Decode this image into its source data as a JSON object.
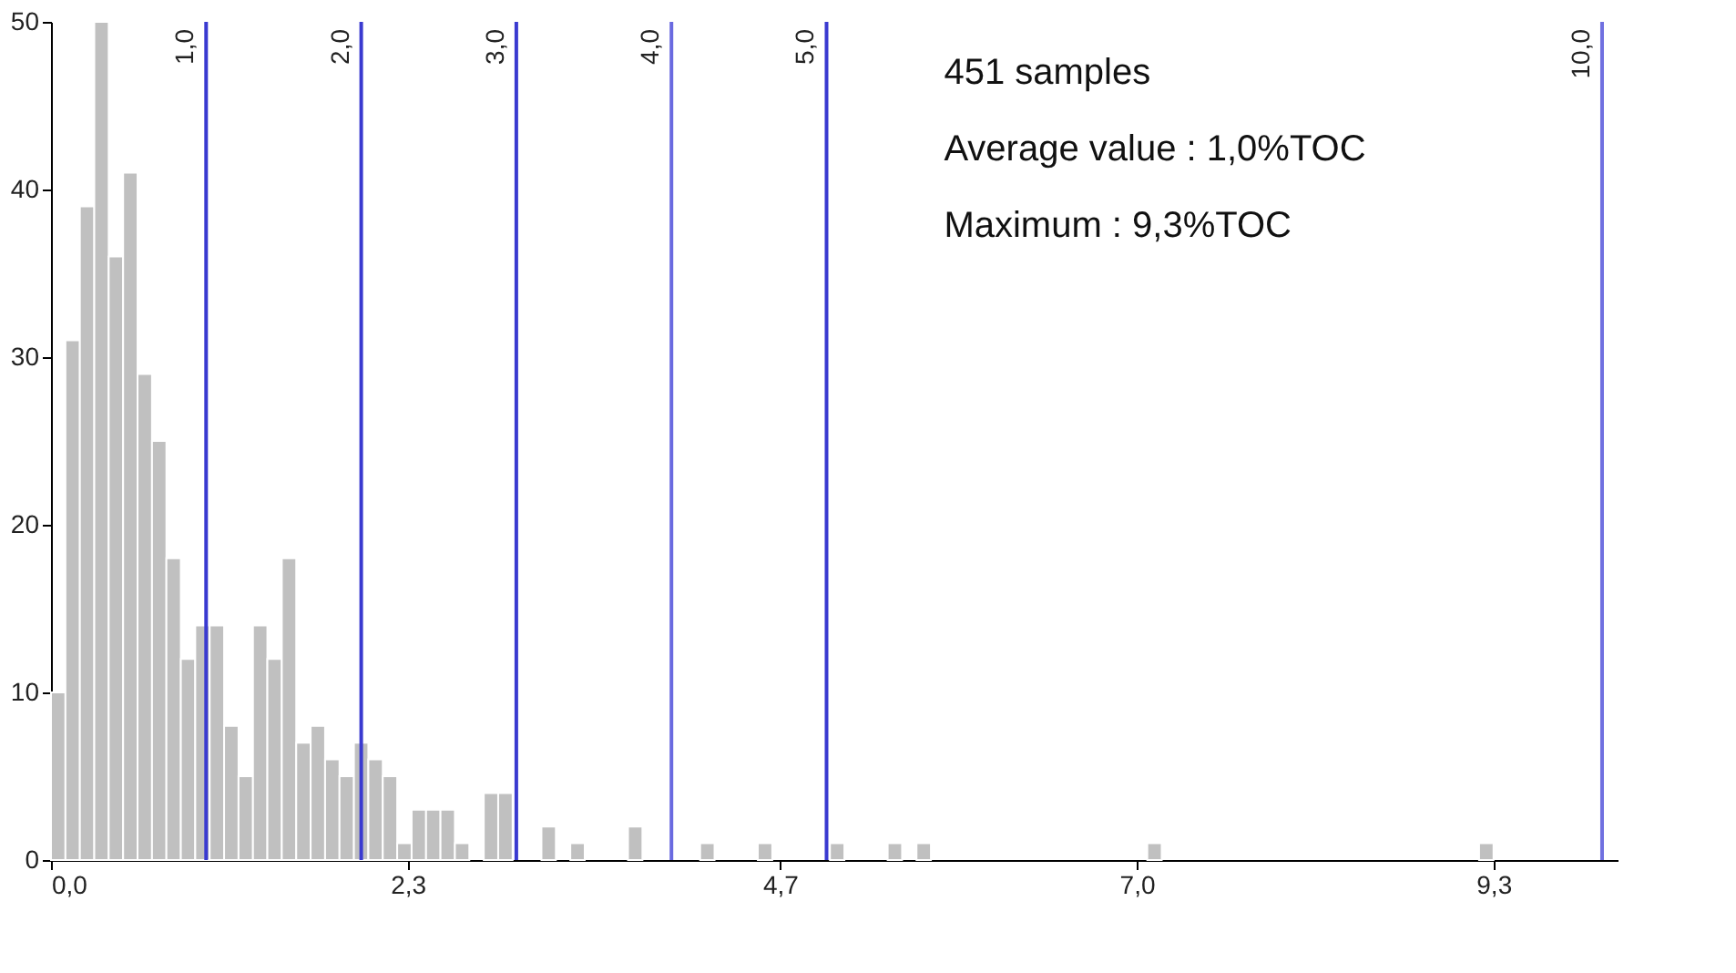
{
  "chart_data": {
    "type": "histogram",
    "bins": [
      0,
      0.093,
      0.186,
      0.279,
      0.372,
      0.465,
      0.558,
      0.651,
      0.744,
      0.837,
      0.93,
      1.023,
      1.116,
      1.209,
      1.302,
      1.395,
      1.488,
      1.581,
      1.674,
      1.767,
      1.86,
      1.953,
      2.046,
      2.139,
      2.232,
      2.325,
      2.418,
      2.511,
      2.604,
      2.697,
      2.79,
      2.883,
      2.976,
      3.069,
      3.162,
      3.255,
      3.348,
      3.441,
      3.534,
      3.627,
      3.72,
      3.813,
      3.906,
      3.999,
      4.092,
      4.185,
      4.278,
      4.371,
      4.464,
      4.557,
      4.65,
      4.743,
      4.836,
      4.929,
      5.022,
      5.115,
      5.208,
      5.301,
      5.394,
      5.487,
      5.58,
      5.673,
      5.766,
      5.859,
      5.952,
      6.045,
      6.138,
      6.231,
      6.324,
      6.417,
      6.51,
      6.603,
      6.696,
      6.789,
      6.882,
      6.975,
      7.068,
      7.161,
      7.254,
      7.347,
      7.44,
      7.533,
      7.626,
      7.719,
      7.812,
      7.905,
      7.998,
      8.091,
      8.184,
      8.277,
      8.37,
      8.463,
      8.556,
      8.649,
      8.742,
      8.835,
      8.928,
      9.021,
      9.114,
      9.207,
      9.3
    ],
    "values": [
      10,
      31,
      39,
      50,
      36,
      41,
      29,
      25,
      18,
      12,
      14,
      14,
      8,
      5,
      14,
      12,
      18,
      7,
      8,
      6,
      5,
      7,
      6,
      5,
      1,
      3,
      3,
      3,
      1,
      0,
      4,
      4,
      0,
      0,
      2,
      0,
      1,
      0,
      0,
      0,
      2,
      0,
      0,
      0,
      0,
      1,
      0,
      0,
      0,
      1,
      0,
      0,
      0,
      0,
      1,
      0,
      0,
      0,
      1,
      0,
      1,
      0,
      0,
      0,
      0,
      0,
      0,
      0,
      0,
      0,
      0,
      0,
      0,
      0,
      0,
      0,
      1,
      0,
      0,
      0,
      0,
      0,
      0,
      0,
      0,
      0,
      0,
      0,
      0,
      0,
      0,
      0,
      0,
      0,
      0,
      0,
      0,
      0,
      0,
      1
    ],
    "color": "#c0c0c0",
    "xlim": [
      0,
      10.1
    ],
    "xticks": [
      {
        "value": 0,
        "label": "0,0"
      },
      {
        "value": 2.3,
        "label": "2,3"
      },
      {
        "value": 4.7,
        "label": "4,7"
      },
      {
        "value": 7.0,
        "label": "7,0"
      },
      {
        "value": 9.3,
        "label": "9,3"
      }
    ],
    "ylim": [
      0,
      50
    ],
    "yticks": [
      0,
      10,
      20,
      30,
      40,
      50
    ],
    "grid": false,
    "legend": false,
    "ref_lines": [
      {
        "axis": "x",
        "value": 1.0,
        "label": "1,0",
        "color": "#3a3ad0"
      },
      {
        "axis": "x",
        "value": 2.0,
        "label": "2,0",
        "color": "#3a3ad0"
      },
      {
        "axis": "x",
        "value": 3.0,
        "label": "3,0",
        "color": "#3a3ad0"
      },
      {
        "axis": "x",
        "value": 4.0,
        "label": "4,0",
        "color": "#6a6ae0"
      },
      {
        "axis": "x",
        "value": 5.0,
        "label": "5,0",
        "color": "#3a3ad0"
      },
      {
        "axis": "x",
        "value": 10.0,
        "label": "10,0",
        "color": "#7070e0"
      }
    ],
    "annotations": [
      "451 samples",
      "Average value : 1,0%TOC",
      "Maximum : 9,3%TOC"
    ]
  }
}
